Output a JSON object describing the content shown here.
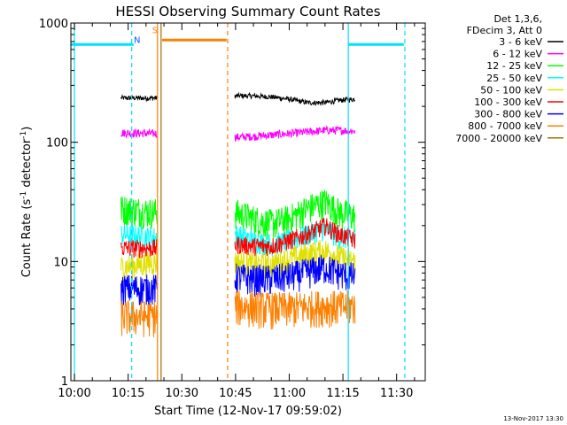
{
  "chart_data": {
    "type": "line",
    "title": "HESSI Observing Summary Count Rates",
    "xlabel": "Start Time (12-Nov-17 09:59:02)",
    "ylabel_main": "Count Rate (s",
    "ylabel_sup1": "-1",
    "ylabel_mid": " detector",
    "ylabel_sup2": "-1",
    "ylabel_end": ")",
    "yscale": "log",
    "ylim": [
      1,
      1000
    ],
    "xlim_minutes": [
      -1,
      98
    ],
    "x_ticks": [
      {
        "m": 0,
        "label": "10:00"
      },
      {
        "m": 15,
        "label": "10:15"
      },
      {
        "m": 30,
        "label": "10:30"
      },
      {
        "m": 45,
        "label": "10:45"
      },
      {
        "m": 60,
        "label": "11:00"
      },
      {
        "m": 75,
        "label": "11:15"
      },
      {
        "m": 90,
        "label": "11:30"
      }
    ],
    "y_ticks": [
      {
        "v": 1,
        "label": "1"
      },
      {
        "v": 10,
        "label": "10"
      },
      {
        "v": 100,
        "label": "100"
      },
      {
        "v": 1000,
        "label": "1000"
      }
    ],
    "legend_header": [
      "Det 1,3,6,",
      "FDecim 3, Att 0"
    ],
    "legend_position": "top-right, outside plot",
    "series": [
      {
        "name": "3 - 6 keV",
        "color": "#000000",
        "x": [
          13,
          23.2,
          44.8,
          50,
          55,
          60,
          65,
          70,
          74,
          78.5
        ],
        "values": [
          235,
          235,
          245,
          245,
          240,
          230,
          215,
          215,
          225,
          230
        ]
      },
      {
        "name": "6 - 12 keV",
        "color": "#ff00ff",
        "x": [
          13,
          23.2,
          44.8,
          50,
          55,
          60,
          65,
          70,
          74,
          78.5
        ],
        "values": [
          120,
          118,
          110,
          112,
          115,
          118,
          122,
          126,
          126,
          124
        ]
      },
      {
        "name": "12 - 25 keV",
        "color": "#00ff00",
        "x": [
          13,
          23.2,
          44.8,
          50,
          55,
          60,
          65,
          70,
          74,
          78.5
        ],
        "values": [
          28,
          26,
          26,
          23,
          21,
          23,
          28,
          32,
          26,
          24
        ]
      },
      {
        "name": "25 - 50 keV",
        "color": "#00ffff",
        "x": [
          13,
          23.2,
          44.8,
          50,
          55,
          60,
          65,
          70,
          74,
          78.5
        ],
        "values": [
          17,
          16,
          17,
          15,
          14,
          15,
          17,
          19,
          16,
          16
        ]
      },
      {
        "name": "50 - 100 keV",
        "color": "#e0e000",
        "x": [
          13,
          23.2,
          44.8,
          50,
          55,
          60,
          65,
          70,
          74,
          78.5
        ],
        "values": [
          9,
          10,
          10,
          9.5,
          9.5,
          10.5,
          11.5,
          12.5,
          11,
          10
        ]
      },
      {
        "name": "100 - 300 keV",
        "color": "#ff0000",
        "x": [
          13,
          23.2,
          44.8,
          50,
          55,
          60,
          65,
          70,
          74,
          78.5
        ],
        "values": [
          13,
          13,
          14,
          13.5,
          13.5,
          15,
          17,
          20,
          17,
          15
        ]
      },
      {
        "name": "300 - 800 keV",
        "color": "#0000ff",
        "x": [
          13,
          23.2,
          44.8,
          50,
          55,
          60,
          65,
          70,
          74,
          78.5
        ],
        "values": [
          6,
          6,
          7.5,
          7.2,
          7.2,
          7.6,
          8.2,
          9,
          8,
          7.5
        ]
      },
      {
        "name": "800 - 7000 keV",
        "color": "#ff8000",
        "x": [
          13,
          23.2,
          44.8,
          50,
          55,
          60,
          65,
          70,
          74,
          78.5
        ],
        "values": [
          3.5,
          3.5,
          4.3,
          4.2,
          4.1,
          4.1,
          4.2,
          4.3,
          4.2,
          4.3
        ]
      },
      {
        "name": "7000 - 20000 keV",
        "color": "#a07000",
        "x": [],
        "values": []
      }
    ],
    "markers": [
      {
        "type": "saa_flag",
        "color": "#00e0ff",
        "x_start": -1,
        "x_end": 16.5,
        "y": 660
      },
      {
        "type": "saa_flag",
        "color": "#00e0ff",
        "x_start": 76.5,
        "x_end": 92,
        "y": 660
      },
      {
        "type": "attenuator_flag",
        "color": "#ff8000",
        "x_start": 24.5,
        "x_end": 42.5,
        "y": 720
      },
      {
        "type": "vline",
        "style": "solid",
        "color": "#00e0ff",
        "x": 0
      },
      {
        "type": "vline",
        "style": "dashed",
        "color": "#00e0ff",
        "x": 16
      },
      {
        "type": "vline",
        "style": "solid",
        "color": "#ff8000",
        "x": 23.2
      },
      {
        "type": "vline",
        "style": "solid",
        "color": "#a07000",
        "x": 24.2
      },
      {
        "type": "vline",
        "style": "dashed",
        "color": "#ff8000",
        "x": 42.8
      },
      {
        "type": "vline",
        "style": "solid",
        "color": "#00e0ff",
        "x": 76.5
      },
      {
        "type": "vline",
        "style": "dashed",
        "color": "#00e0ff",
        "x": 92.3
      }
    ],
    "annotations": [
      {
        "text": "N",
        "color": "#0060ff",
        "x": 17.5,
        "y": 680
      },
      {
        "text": "S",
        "color": "#ff8000",
        "x": 22.5,
        "y": 820
      }
    ]
  },
  "footer": {
    "timestamp": "13-Nov-2017 13:30"
  }
}
